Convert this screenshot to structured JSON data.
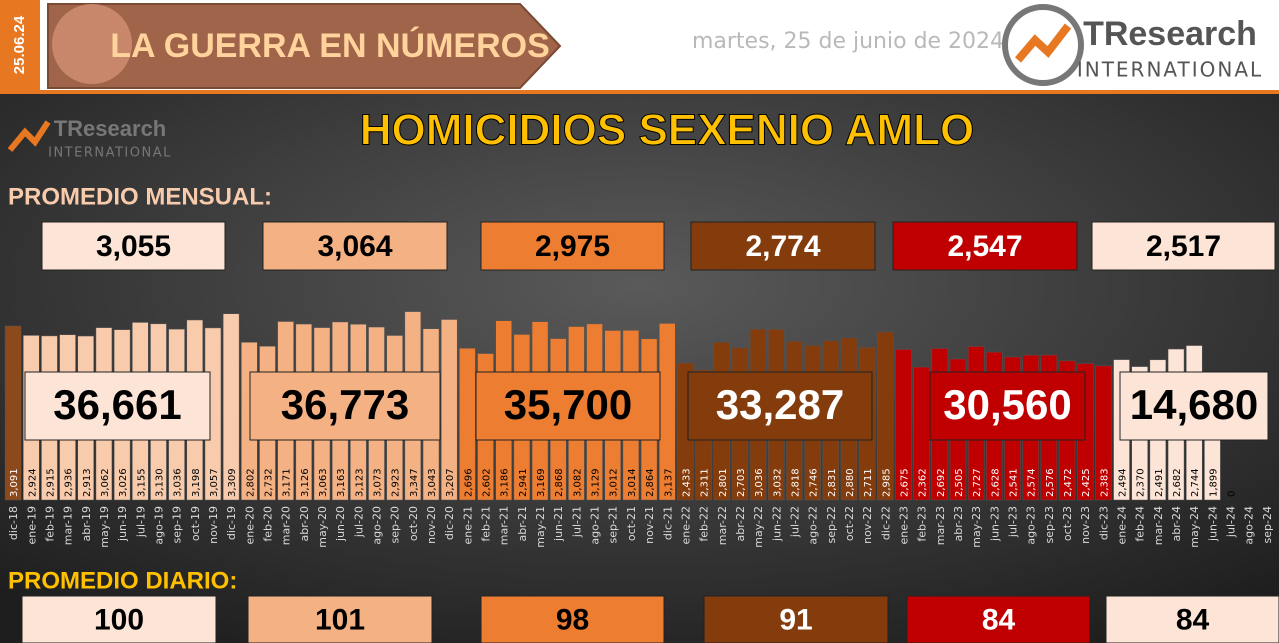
{
  "header": {
    "date_tag": "25.06.24",
    "banner": "LA GUERRA EN NÚMEROS",
    "date": "martes, 25 de junio de 2024",
    "logo_main": "TResearch",
    "logo_sub": "INTERNATIONAL"
  },
  "chart_data": {
    "type": "bar",
    "title": "HOMICIDIOS SEXENIO AMLO",
    "monthly_heading": "PROMEDIO MENSUAL:",
    "daily_heading": "PROMEDIO DIARIO:",
    "ylim": [
      0,
      3500
    ],
    "categories": [
      "dic-18",
      "ene-19",
      "feb-19",
      "mar-19",
      "abr-19",
      "may-19",
      "jun-19",
      "jul-19",
      "ago-19",
      "sep-19",
      "oct-19",
      "nov-19",
      "dic-19",
      "ene-20",
      "feb-20",
      "mar-20",
      "abr-20",
      "may-20",
      "jun-20",
      "jul-20",
      "ago-20",
      "sep-20",
      "oct-20",
      "nov-20",
      "dic-20",
      "ene-21",
      "feb-21",
      "mar-21",
      "abr-21",
      "may-21",
      "jun-21",
      "jul-21",
      "ago-21",
      "sep-21",
      "oct-21",
      "nov-21",
      "dic-21",
      "ene-22",
      "feb-22",
      "mar-22",
      "abr-22",
      "may-22",
      "jun-22",
      "jul-22",
      "ago-22",
      "sep-22",
      "oct-22",
      "nov-22",
      "dic-22",
      "ene-23",
      "feb-23",
      "mar-23",
      "abr-23",
      "may-23",
      "jun-23",
      "jul-23",
      "ago-23",
      "sep-23",
      "oct-23",
      "nov-23",
      "dic-23",
      "ene-24",
      "feb-24",
      "mar-24",
      "abr-24",
      "may-24",
      "jun-24",
      "jul-24",
      "ago-24",
      "sep-24"
    ],
    "values": [
      3091,
      2924,
      2915,
      2936,
      2913,
      3062,
      3026,
      3155,
      3130,
      3036,
      3198,
      3057,
      3309,
      2802,
      2732,
      3171,
      3126,
      3063,
      3163,
      3123,
      3073,
      2923,
      3347,
      3043,
      3207,
      2696,
      2602,
      3186,
      2941,
      3169,
      2868,
      3082,
      3129,
      3012,
      3014,
      2864,
      3137,
      2433,
      2311,
      2801,
      2703,
      3036,
      3032,
      2818,
      2746,
      2831,
      2880,
      2711,
      2985,
      2675,
      2362,
      2692,
      2505,
      2727,
      2628,
      2541,
      2574,
      2576,
      2472,
      2425,
      2383,
      2494,
      2370,
      2491,
      2682,
      2744,
      1899,
      0,
      null,
      null
    ],
    "value_labels": [
      "3,091",
      "2,924",
      "2,915",
      "2,936",
      "2,913",
      "3,062",
      "3,026",
      "3,155",
      "3,130",
      "3,036",
      "3,198",
      "3,057",
      "3,309",
      "2,802",
      "2,732",
      "3,171",
      "3,126",
      "3,063",
      "3,163",
      "3,123",
      "3,073",
      "2,923",
      "3,347",
      "3,043",
      "3,207",
      "2,696",
      "2,602",
      "3,186",
      "2,941",
      "3,169",
      "2,868",
      "3,082",
      "3,129",
      "3,012",
      "3,014",
      "2,864",
      "3,137",
      "2,433",
      "2,311",
      "2,801",
      "2,703",
      "3,036",
      "3,032",
      "2,818",
      "2,746",
      "2,831",
      "2,880",
      "2,711",
      "2,985",
      "2,675",
      "2,362",
      "2,692",
      "2,505",
      "2,727",
      "2,628",
      "2,541",
      "2,574",
      "2,576",
      "2,472",
      "2,425",
      "2,383",
      "2,494",
      "2,370",
      "2,491",
      "2,682",
      "2,744",
      "1,899",
      "0",
      null,
      null
    ],
    "colors": [
      "#8c4a1c",
      "#f8cbad",
      "#f8cbad",
      "#f8cbad",
      "#f8cbad",
      "#f8cbad",
      "#f8cbad",
      "#f8cbad",
      "#f8cbad",
      "#f8cbad",
      "#f8cbad",
      "#f8cbad",
      "#f8cbad",
      "#f4b183",
      "#f4b183",
      "#f4b183",
      "#f4b183",
      "#f4b183",
      "#f4b183",
      "#f4b183",
      "#f4b183",
      "#f4b183",
      "#f4b183",
      "#f4b183",
      "#f4b183",
      "#ed7d31",
      "#ed7d31",
      "#ed7d31",
      "#ed7d31",
      "#ed7d31",
      "#ed7d31",
      "#ed7d31",
      "#ed7d31",
      "#ed7d31",
      "#ed7d31",
      "#ed7d31",
      "#ed7d31",
      "#843c0c",
      "#843c0c",
      "#843c0c",
      "#843c0c",
      "#843c0c",
      "#843c0c",
      "#843c0c",
      "#843c0c",
      "#843c0c",
      "#843c0c",
      "#843c0c",
      "#843c0c",
      "#c00000",
      "#c00000",
      "#c00000",
      "#c00000",
      "#c00000",
      "#c00000",
      "#c00000",
      "#c00000",
      "#c00000",
      "#c00000",
      "#c00000",
      "#c00000",
      "#fce4d6",
      "#fce4d6",
      "#fce4d6",
      "#fce4d6",
      "#fce4d6",
      "#fce4d6",
      "#fce4d6",
      "#fce4d6",
      "#fce4d6"
    ],
    "periods": [
      {
        "total": 36661,
        "total_label": "36,661",
        "monthly": 3055,
        "monthly_label": "3,055",
        "daily": 100,
        "color": "#fce4d6",
        "text_color": "#000000"
      },
      {
        "total": 36773,
        "total_label": "36,773",
        "monthly": 3064,
        "monthly_label": "3,064",
        "daily": 101,
        "color": "#f4b183",
        "text_color": "#000000"
      },
      {
        "total": 35700,
        "total_label": "35,700",
        "monthly": 2975,
        "monthly_label": "2,975",
        "daily": 98,
        "color": "#ed7d31",
        "text_color": "#000000"
      },
      {
        "total": 33287,
        "total_label": "33,287",
        "monthly": 2774,
        "monthly_label": "2,774",
        "daily": 91,
        "color": "#843c0c",
        "text_color": "#ffffff"
      },
      {
        "total": 30560,
        "total_label": "30,560",
        "monthly": 2547,
        "monthly_label": "2,547",
        "daily": 84,
        "color": "#c00000",
        "text_color": "#ffffff"
      },
      {
        "total": 14680,
        "total_label": "14,680",
        "monthly": 2517,
        "monthly_label": "2,517",
        "daily": 84,
        "color": "#fce4d6",
        "text_color": "#000000"
      }
    ]
  }
}
